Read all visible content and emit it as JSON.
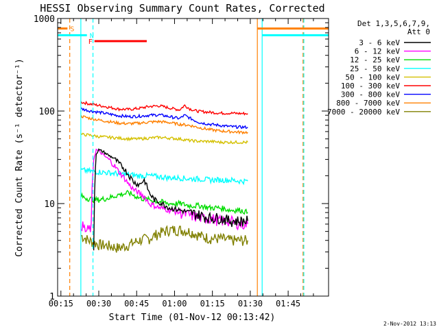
{
  "chart_data": {
    "type": "line",
    "title": "HESSI Observing Summary Count Rates, Corrected",
    "xlabel": "Start Time (01-Nov-12 00:13:42)",
    "ylabel": "Corrected Count Rate (s⁻¹ detector⁻¹)",
    "yscale": "log",
    "xlim_minutes": [
      13.7,
      121.0
    ],
    "ylim": [
      1,
      1000
    ],
    "x_ticks": [
      {
        "label": "00:15",
        "minutes": 15
      },
      {
        "label": "00:30",
        "minutes": 30
      },
      {
        "label": "00:45",
        "minutes": 45
      },
      {
        "label": "01:00",
        "minutes": 60
      },
      {
        "label": "01:15",
        "minutes": 75
      },
      {
        "label": "01:30",
        "minutes": 90
      },
      {
        "label": "01:45",
        "minutes": 105
      }
    ],
    "y_ticks": [
      {
        "label": "1",
        "value": 1
      },
      {
        "label": "10",
        "value": 10
      },
      {
        "label": "100",
        "value": 100
      },
      {
        "label": "1000",
        "value": 1000
      }
    ],
    "legend": {
      "placement": "right",
      "header_line1": "Det 1,3,5,6,7,9,",
      "header_line2": "Att 0",
      "entries": [
        {
          "label": "3 - 6 keV",
          "color": "#000000"
        },
        {
          "label": "6 - 12 keV",
          "color": "#ff00ff"
        },
        {
          "label": "12 - 25 keV",
          "color": "#00dd00"
        },
        {
          "label": "25 - 50 keV",
          "color": "#00ffff"
        },
        {
          "label": "50 - 100 keV",
          "color": "#d4c000"
        },
        {
          "label": "100 - 300 keV",
          "color": "#ff0000"
        },
        {
          "label": "300 - 800 keV",
          "color": "#0000ff"
        },
        {
          "label": "800 - 7000 keV",
          "color": "#ff8000"
        },
        {
          "label": "7000 - 20000 keV",
          "color": "#808000"
        }
      ]
    },
    "series": [
      {
        "name": "3 - 6 keV",
        "color": "#000000",
        "x": [
          28,
          29,
          30,
          32,
          34,
          36,
          38,
          40,
          42,
          44,
          46,
          48,
          50,
          52,
          55,
          58,
          62,
          66,
          70,
          74,
          78,
          82,
          86,
          89
        ],
        "y": [
          3,
          35,
          38,
          36,
          33,
          31,
          27,
          24,
          20,
          17,
          16,
          18,
          13,
          11,
          10,
          9,
          8.5,
          8,
          7.5,
          7,
          7,
          6.5,
          6.5,
          6.5
        ]
      },
      {
        "name": "6 - 12 keV",
        "color": "#ff00ff",
        "x": [
          23,
          25,
          27,
          28,
          29,
          30,
          32,
          34,
          36,
          38,
          40,
          42,
          44,
          46,
          48,
          50,
          54,
          58,
          62,
          66,
          70,
          74,
          78,
          82,
          86,
          89
        ],
        "y": [
          6,
          5,
          5.5,
          30,
          38,
          37,
          33,
          30,
          26,
          22,
          19,
          16,
          14,
          13,
          12,
          10,
          9,
          8.5,
          8,
          7.5,
          7,
          7,
          6.5,
          6.5,
          6,
          6
        ]
      },
      {
        "name": "12 - 25 keV",
        "color": "#00dd00",
        "x": [
          23,
          25,
          28,
          30,
          34,
          38,
          42,
          46,
          50,
          54,
          58,
          62,
          66,
          70,
          74,
          78,
          82,
          86,
          89
        ],
        "y": [
          12,
          11.5,
          11,
          11,
          11.5,
          12.5,
          13,
          11.5,
          11,
          10.5,
          10,
          10,
          9.5,
          9.5,
          9,
          9,
          8.5,
          8.5,
          8
        ]
      },
      {
        "name": "25 - 50 keV",
        "color": "#00ffff",
        "x": [
          23,
          26,
          30,
          34,
          38,
          42,
          46,
          50,
          54,
          58,
          62,
          66,
          70,
          74,
          78,
          82,
          86,
          89
        ],
        "y": [
          23,
          22.5,
          22,
          21.5,
          21,
          20.5,
          20,
          20,
          19.5,
          19,
          19,
          18.5,
          18.5,
          18,
          18,
          18,
          17.5,
          17.5
        ]
      },
      {
        "name": "50 - 100 keV",
        "color": "#d4c000",
        "x": [
          23,
          26,
          30,
          34,
          38,
          42,
          46,
          50,
          54,
          58,
          62,
          66,
          70,
          74,
          78,
          82,
          86,
          89
        ],
        "y": [
          56,
          55,
          53,
          52,
          51,
          50,
          50,
          51,
          52,
          51,
          50,
          48,
          47,
          47,
          46,
          46,
          46,
          46
        ]
      },
      {
        "name": "100 - 300 keV",
        "color": "#ff0000",
        "x": [
          23,
          26,
          30,
          34,
          38,
          42,
          46,
          50,
          54,
          58,
          62,
          64,
          66,
          68,
          70,
          74,
          78,
          82,
          86,
          89
        ],
        "y": [
          125,
          120,
          115,
          110,
          105,
          104,
          107,
          112,
          114,
          108,
          103,
          115,
          106,
          101,
          99,
          97,
          95,
          95,
          94,
          94
        ]
      },
      {
        "name": "300 - 800 keV",
        "color": "#0000ff",
        "x": [
          23,
          26,
          30,
          34,
          38,
          42,
          46,
          50,
          54,
          58,
          62,
          64,
          66,
          68,
          70,
          74,
          78,
          82,
          86,
          89
        ],
        "y": [
          106,
          101,
          97,
          93,
          89,
          87,
          88,
          90,
          91,
          87,
          83,
          90,
          84,
          79,
          75,
          72,
          70,
          68,
          67,
          67
        ]
      },
      {
        "name": "800 - 7000 keV",
        "color": "#ff8000",
        "x": [
          23,
          26,
          30,
          34,
          38,
          42,
          46,
          50,
          54,
          58,
          62,
          66,
          70,
          74,
          78,
          82,
          86,
          89
        ],
        "y": [
          88,
          84,
          80,
          77,
          74,
          73,
          74,
          76,
          77,
          75,
          72,
          70,
          66,
          63,
          61,
          60,
          59,
          59
        ]
      },
      {
        "name": "7000 - 20000 keV",
        "color": "#808000",
        "x": [
          23,
          26,
          30,
          34,
          38,
          42,
          46,
          50,
          54,
          58,
          62,
          66,
          70,
          74,
          78,
          82,
          86,
          89
        ],
        "y": [
          4.5,
          4,
          3.6,
          3.5,
          3.3,
          3.6,
          4,
          4.2,
          4.8,
          5.2,
          5.2,
          5,
          4.5,
          4.2,
          4.2,
          4,
          4,
          4
        ]
      }
    ],
    "segments": [
      {
        "label": "S",
        "color": "#ff8000",
        "x_start": 13.7,
        "x_end": 17.6,
        "y_value": 780
      },
      {
        "label": "N",
        "color": "#00ffff",
        "x_start": 13.7,
        "x_end": 25.3,
        "y_value": 660
      },
      {
        "label": "F",
        "color": "#ff0000",
        "x_start": 28.3,
        "x_end": 49.0,
        "y_value": 570
      }
    ],
    "right_lines": [
      {
        "color": "#ff8000",
        "x_start": 92.8,
        "x_end": 121.0,
        "y_value": 780
      },
      {
        "color": "#00ffff",
        "x_start": 94.7,
        "x_end": 121.0,
        "y_value": 660
      }
    ],
    "vertical_markers": [
      {
        "color": "#ff8000",
        "style": "dashed",
        "x": 18.5
      },
      {
        "color": "#00ffff",
        "style": "solid",
        "x": 22.9
      },
      {
        "color": "#00ffff",
        "style": "dashed",
        "x": 27.7
      },
      {
        "color": "#ff8000",
        "style": "solid",
        "x": 92.8
      },
      {
        "color": "#00ffff",
        "style": "solid",
        "x": 94.7
      },
      {
        "color": "#ff8000",
        "style": "dashed",
        "x": 110.9
      },
      {
        "color": "#00ffff",
        "style": "dashed",
        "x": 111.2
      }
    ],
    "footer_date": "2-Nov-2012 13:13"
  }
}
